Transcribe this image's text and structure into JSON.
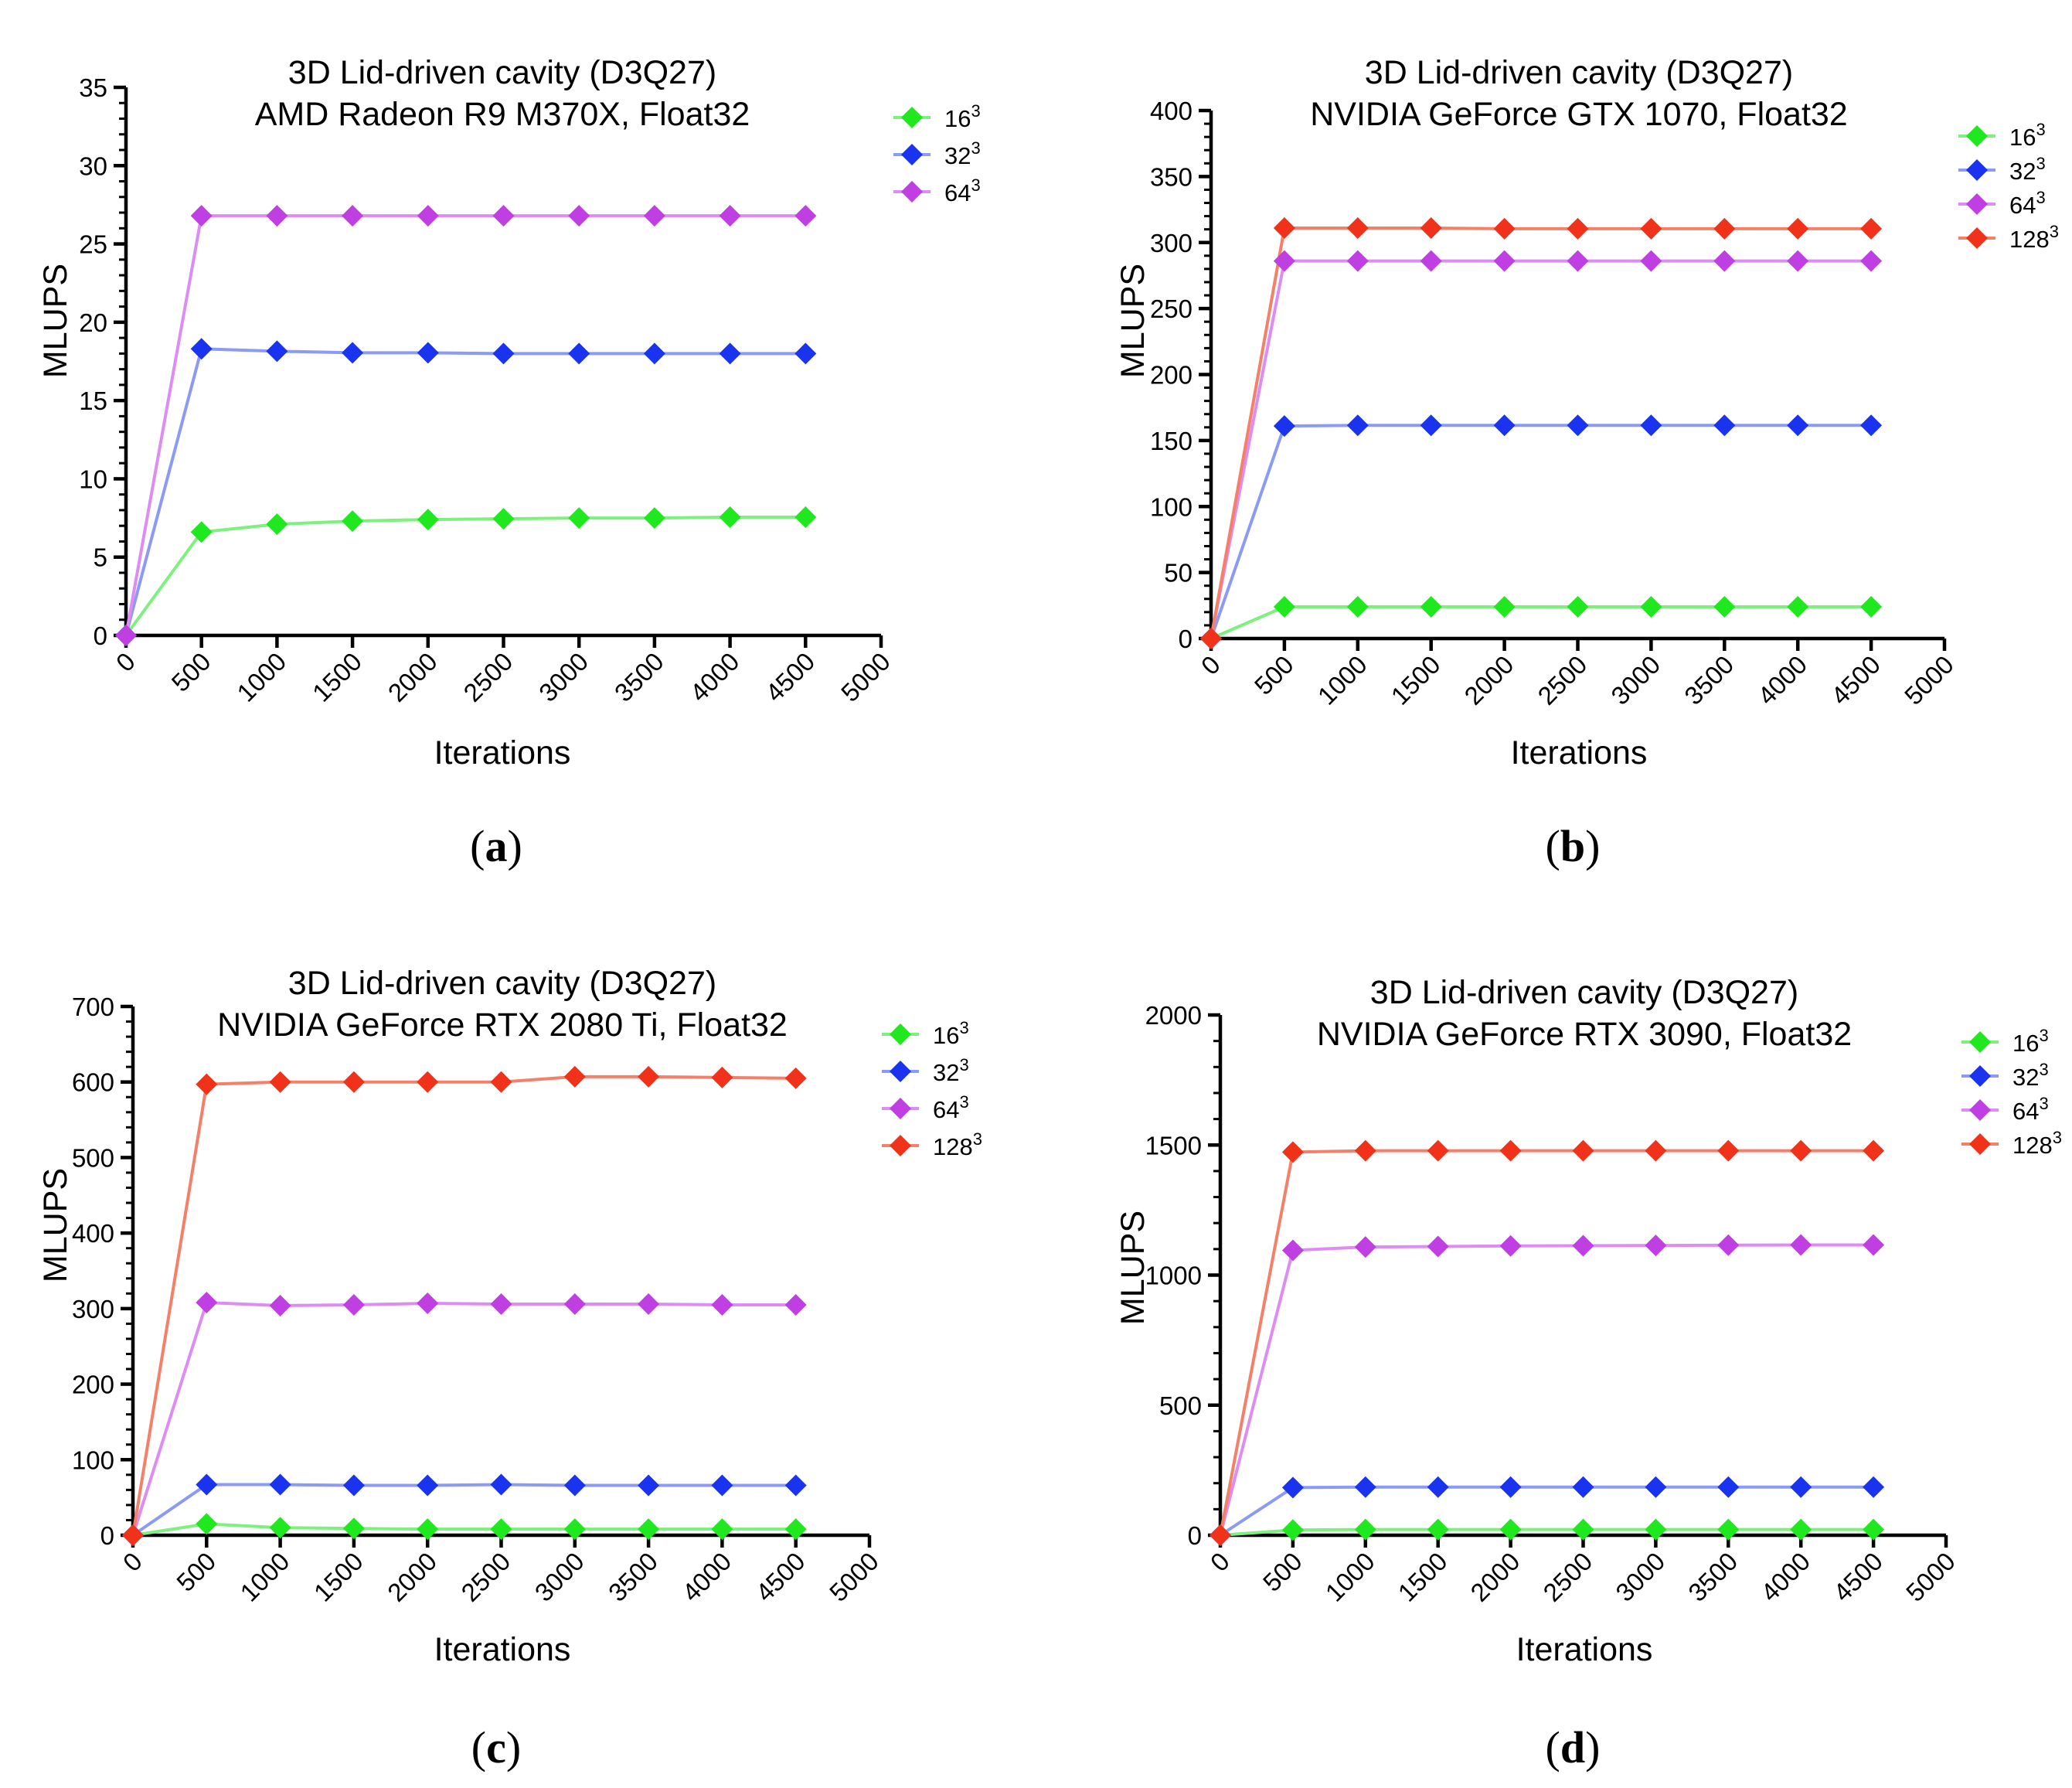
{
  "figure": {
    "charts": [
      {
        "panel_label": "a",
        "title_line1": "3D Lid-driven cavity (D3Q27)",
        "title_line2": "AMD Radeon R9 M370X, Float32",
        "xlabel": "Iterations",
        "ylabel": "MLUPS"
      },
      {
        "panel_label": "b",
        "title_line1": "3D Lid-driven cavity (D3Q27)",
        "title_line2": "NVIDIA GeForce GTX 1070, Float32",
        "xlabel": "Iterations",
        "ylabel": "MLUPS"
      },
      {
        "panel_label": "c",
        "title_line1": "3D Lid-driven cavity (D3Q27)",
        "title_line2": "NVIDIA GeForce RTX 2080 Ti, Float32",
        "xlabel": "Iterations",
        "ylabel": "MLUPS"
      },
      {
        "panel_label": "d",
        "title_line1": "3D Lid-driven cavity (D3Q27)",
        "title_line2": "NVIDIA GeForce RTX 3090, Float32",
        "xlabel": "Iterations",
        "ylabel": "MLUPS"
      }
    ]
  },
  "chart_data": [
    {
      "type": "line",
      "title": "3D Lid-driven cavity (D3Q27) AMD Radeon R9 M370X, Float32",
      "xlabel": "Iterations",
      "ylabel": "MLUPS",
      "xlim": [
        0,
        5000
      ],
      "ylim": [
        0,
        35
      ],
      "x_ticks": [
        0,
        500,
        1000,
        1500,
        2000,
        2500,
        3000,
        3500,
        4000,
        4500,
        5000
      ],
      "y_ticks": [
        0,
        5,
        10,
        15,
        20,
        25,
        30,
        35
      ],
      "y_minor_per_major": 5,
      "legend_position": "top-right",
      "x": [
        0,
        500,
        1000,
        1500,
        2000,
        2500,
        3000,
        3500,
        4000,
        4500
      ],
      "series": [
        {
          "name": "16",
          "superscript": "3",
          "line_color": "#7df07d",
          "marker_color": "#1fe81f",
          "values": [
            0,
            6.6,
            7.1,
            7.3,
            7.4,
            7.45,
            7.5,
            7.5,
            7.55,
            7.55
          ]
        },
        {
          "name": "32",
          "superscript": "3",
          "line_color": "#8a9af5",
          "marker_color": "#1a33ee",
          "values": [
            0,
            18.3,
            18.15,
            18.05,
            18.05,
            18.0,
            18.0,
            18.0,
            18.0,
            18.0
          ]
        },
        {
          "name": "64",
          "superscript": "3",
          "line_color": "#dd8cf3",
          "marker_color": "#bf3fe3",
          "values": [
            0,
            26.8,
            26.8,
            26.8,
            26.8,
            26.8,
            26.8,
            26.8,
            26.8,
            26.8
          ]
        }
      ]
    },
    {
      "type": "line",
      "title": "3D Lid-driven cavity (D3Q27) NVIDIA GeForce GTX 1070, Float32",
      "xlabel": "Iterations",
      "ylabel": "MLUPS",
      "xlim": [
        0,
        5000
      ],
      "ylim": [
        0,
        400
      ],
      "x_ticks": [
        0,
        500,
        1000,
        1500,
        2000,
        2500,
        3000,
        3500,
        4000,
        4500,
        5000
      ],
      "y_ticks": [
        0,
        50,
        100,
        150,
        200,
        250,
        300,
        350,
        400
      ],
      "y_minor_per_major": 5,
      "legend_position": "top-right",
      "x": [
        0,
        500,
        1000,
        1500,
        2000,
        2500,
        3000,
        3500,
        4000,
        4500
      ],
      "series": [
        {
          "name": "16",
          "superscript": "3",
          "line_color": "#7df07d",
          "marker_color": "#1fe81f",
          "values": [
            0,
            24,
            24,
            24,
            24,
            24,
            24,
            24,
            24,
            24
          ]
        },
        {
          "name": "32",
          "superscript": "3",
          "line_color": "#8a9af5",
          "marker_color": "#1a33ee",
          "values": [
            0,
            161,
            161.5,
            161.5,
            161.5,
            161.5,
            161.5,
            161.5,
            161.5,
            161.5
          ]
        },
        {
          "name": "64",
          "superscript": "3",
          "line_color": "#dd8cf3",
          "marker_color": "#bf3fe3",
          "values": [
            0,
            286,
            286,
            286,
            286,
            286,
            286,
            286,
            286,
            286
          ]
        },
        {
          "name": "128",
          "superscript": "3",
          "line_color": "#f5806a",
          "marker_color": "#f0321a",
          "values": [
            0,
            311,
            311,
            311,
            310.5,
            310.5,
            310.5,
            310.5,
            310.5,
            310.5
          ]
        }
      ]
    },
    {
      "type": "line",
      "title": "3D Lid-driven cavity (D3Q27) NVIDIA GeForce RTX 2080 Ti, Float32",
      "xlabel": "Iterations",
      "ylabel": "MLUPS",
      "xlim": [
        0,
        5000
      ],
      "ylim": [
        0,
        700
      ],
      "x_ticks": [
        0,
        500,
        1000,
        1500,
        2000,
        2500,
        3000,
        3500,
        4000,
        4500,
        5000
      ],
      "y_ticks": [
        0,
        100,
        200,
        300,
        400,
        500,
        600,
        700
      ],
      "y_minor_per_major": 5,
      "legend_position": "top-right",
      "x": [
        0,
        500,
        1000,
        1500,
        2000,
        2500,
        3000,
        3500,
        4000,
        4500
      ],
      "series": [
        {
          "name": "16",
          "superscript": "3",
          "line_color": "#7df07d",
          "marker_color": "#1fe81f",
          "values": [
            0,
            15,
            10,
            9,
            8,
            8,
            8,
            8,
            8,
            8
          ]
        },
        {
          "name": "32",
          "superscript": "3",
          "line_color": "#8a9af5",
          "marker_color": "#1a33ee",
          "values": [
            0,
            67,
            67,
            66,
            66,
            67,
            66,
            66,
            66,
            66
          ]
        },
        {
          "name": "64",
          "superscript": "3",
          "line_color": "#dd8cf3",
          "marker_color": "#bf3fe3",
          "values": [
            0,
            308,
            304,
            305,
            307,
            306,
            306,
            306,
            305,
            305
          ]
        },
        {
          "name": "128",
          "superscript": "3",
          "line_color": "#f5806a",
          "marker_color": "#f0321a",
          "values": [
            0,
            597,
            600,
            600,
            600,
            600,
            607,
            607,
            606,
            605
          ]
        }
      ]
    },
    {
      "type": "line",
      "title": "3D Lid-driven cavity (D3Q27) NVIDIA GeForce RTX 3090, Float32",
      "xlabel": "Iterations",
      "ylabel": "MLUPS",
      "xlim": [
        0,
        5000
      ],
      "ylim": [
        0,
        2000
      ],
      "x_ticks": [
        0,
        500,
        1000,
        1500,
        2000,
        2500,
        3000,
        3500,
        4000,
        4500,
        5000
      ],
      "y_ticks": [
        0,
        500,
        1000,
        1500,
        2000
      ],
      "y_minor_per_major": 5,
      "legend_position": "top-right",
      "x": [
        0,
        500,
        1000,
        1500,
        2000,
        2500,
        3000,
        3500,
        4000,
        4500
      ],
      "series": [
        {
          "name": "16",
          "superscript": "3",
          "line_color": "#7df07d",
          "marker_color": "#1fe81f",
          "values": [
            0,
            20,
            22,
            22,
            22,
            22,
            22,
            22,
            22,
            22
          ]
        },
        {
          "name": "32",
          "superscript": "3",
          "line_color": "#8a9af5",
          "marker_color": "#1a33ee",
          "values": [
            0,
            183,
            185,
            185,
            185,
            185,
            185,
            185,
            185,
            185
          ]
        },
        {
          "name": "64",
          "superscript": "3",
          "line_color": "#dd8cf3",
          "marker_color": "#bf3fe3",
          "values": [
            0,
            1095,
            1108,
            1110,
            1112,
            1113,
            1114,
            1115,
            1116,
            1116
          ]
        },
        {
          "name": "128",
          "superscript": "3",
          "line_color": "#f5806a",
          "marker_color": "#f0321a",
          "values": [
            0,
            1473,
            1478,
            1478,
            1478,
            1478,
            1478,
            1478,
            1478,
            1478
          ]
        }
      ]
    }
  ]
}
